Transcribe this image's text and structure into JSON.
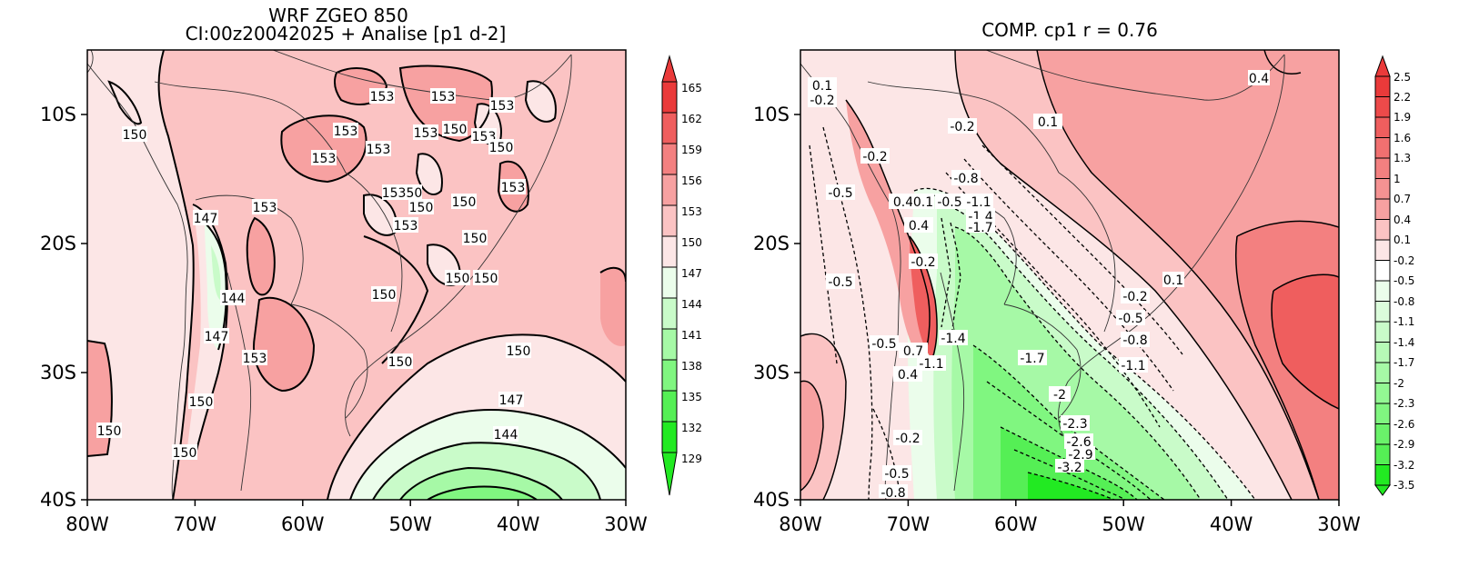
{
  "colors": {
    "pink_light": "#fce6e6",
    "pink": "#fbc3c3",
    "pink_mid": "#f7a1a1",
    "red_mid": "#f38080",
    "red": "#ef5e5e",
    "red_dark": "#ea3a3a",
    "green_pale": "#ebfdeb",
    "green_light": "#c9fbc9",
    "green_mid": "#a6f9a6",
    "green": "#80f680",
    "green_dark": "#55ef55",
    "green_bright": "#22ea22"
  },
  "panels": [
    {
      "id": "left",
      "title_line1": "WRF ZGEO 850",
      "title_line2": "CI:00z20042025 + Analise  [p1 d-2]",
      "x_ticks": [
        "80W",
        "70W",
        "60W",
        "50W",
        "40W",
        "30W"
      ],
      "y_ticks": [
        "10S",
        "20S",
        "30S",
        "40S"
      ],
      "colorbar_levels": [
        "165",
        "162",
        "159",
        "156",
        "153",
        "150",
        "147",
        "144",
        "141",
        "138",
        "135",
        "132",
        "129"
      ],
      "contour_labels": [
        "153",
        "153",
        "153",
        "153",
        "153",
        "153",
        "153",
        "153",
        "153",
        "153",
        "153",
        "153",
        "150",
        "150",
        "150",
        "150",
        "150",
        "150",
        "150",
        "150",
        "150",
        "150",
        "150",
        "150",
        "150",
        "150",
        "147",
        "147",
        "147",
        "144",
        "144",
        "15350"
      ]
    },
    {
      "id": "right",
      "title_line1": "COMP. cp1   r =   0.76",
      "x_ticks": [
        "80W",
        "70W",
        "60W",
        "50W",
        "40W",
        "30W"
      ],
      "y_ticks": [
        "10S",
        "20S",
        "30S",
        "40S"
      ],
      "colorbar_levels": [
        "2.5",
        "2.2",
        "1.9",
        "1.6",
        "1.3",
        "1",
        "0.7",
        "0.4",
        "0.1",
        "-0.2",
        "-0.5",
        "-0.8",
        "-1.1",
        "-1.4",
        "-1.7",
        "-2",
        "-2.3",
        "-2.6",
        "-2.9",
        "-3.2",
        "-3.5"
      ],
      "contour_labels": [
        "0.1",
        "-0.2",
        "-0.2",
        "-0.2",
        "0.1",
        "-0.8",
        "-0.5",
        "0.4",
        "0.1",
        "-0.5",
        "-1.1",
        "-1.4",
        "-1.7",
        "0.4",
        "-0.5",
        "-0.2",
        "-0.5",
        "0.7",
        "-1.1",
        "0.4",
        "-1.4",
        "-1.7",
        "-0.2",
        "-0.5",
        "-0.8",
        "-1.1",
        "-2",
        "-2.3",
        "-2.6",
        "-2.9",
        "-3.2",
        "-0.2",
        "-0.5",
        "-0.8",
        "0.1",
        "0.4"
      ]
    }
  ]
}
